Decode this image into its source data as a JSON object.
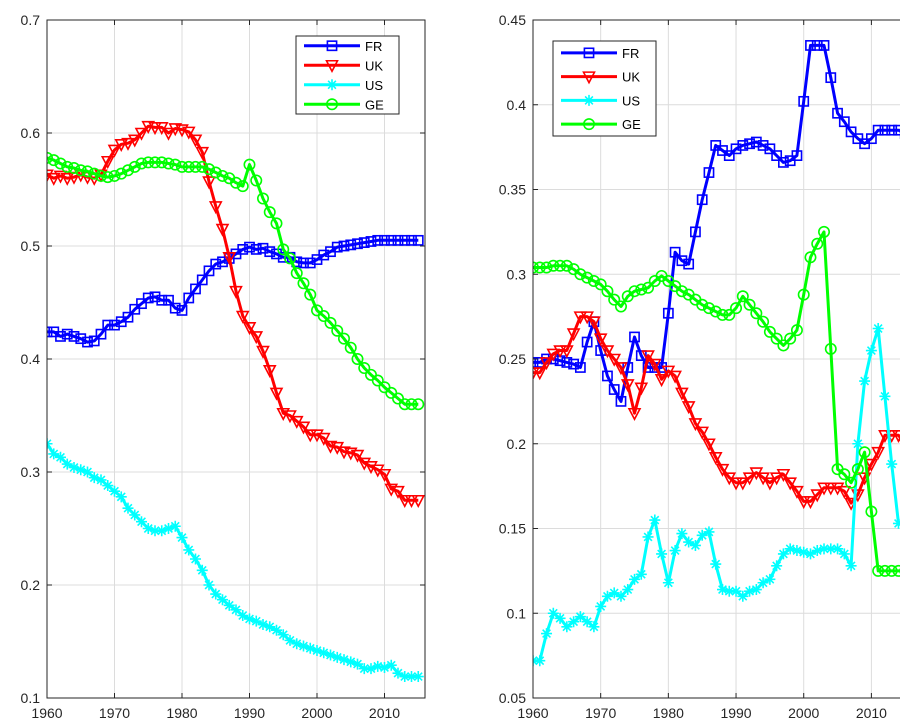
{
  "chart_data": [
    {
      "type": "line",
      "xlim": [
        1960,
        2016
      ],
      "ylim": [
        0.1,
        0.7
      ],
      "x_ticks": [
        1960,
        1970,
        1980,
        1990,
        2000,
        2010
      ],
      "y_ticks": [
        0.1,
        0.2,
        0.3,
        0.4,
        0.5,
        0.6,
        0.7
      ],
      "x_tick_labels": [
        "1960",
        "1970",
        "1980",
        "1990",
        "2000",
        "2010"
      ],
      "y_tick_labels": [
        "0.1",
        "0.2",
        "0.3",
        "0.4",
        "0.5",
        "0.6",
        "0.7"
      ],
      "grid": true,
      "legend_placement": "top-right",
      "x": [
        1960,
        1961,
        1962,
        1963,
        1964,
        1965,
        1966,
        1967,
        1968,
        1969,
        1970,
        1971,
        1972,
        1973,
        1974,
        1975,
        1976,
        1977,
        1978,
        1979,
        1980,
        1981,
        1982,
        1983,
        1984,
        1985,
        1986,
        1987,
        1988,
        1989,
        1990,
        1991,
        1992,
        1993,
        1994,
        1995,
        1996,
        1997,
        1998,
        1999,
        2000,
        2001,
        2002,
        2003,
        2004,
        2005,
        2006,
        2007,
        2008,
        2009,
        2010,
        2011,
        2012,
        2013,
        2014,
        2015
      ],
      "series": [
        {
          "name": "FR",
          "color": "#0000ff",
          "marker": "square",
          "values": [
            0.424,
            0.424,
            0.42,
            0.422,
            0.42,
            0.418,
            0.415,
            0.416,
            0.422,
            0.43,
            0.43,
            0.433,
            0.437,
            0.444,
            0.449,
            0.454,
            0.455,
            0.452,
            0.452,
            0.445,
            0.443,
            0.454,
            0.462,
            0.47,
            0.478,
            0.484,
            0.486,
            0.489,
            0.493,
            0.497,
            0.499,
            0.497,
            0.498,
            0.495,
            0.493,
            0.49,
            0.49,
            0.486,
            0.485,
            0.485,
            0.488,
            0.492,
            0.495,
            0.499,
            0.5,
            0.501,
            0.502,
            0.503,
            0.504,
            0.505,
            0.505,
            0.505,
            0.505,
            0.505,
            0.505,
            0.505
          ]
        },
        {
          "name": "UK",
          "color": "#ff0000",
          "marker": "triangle-down",
          "values": [
            0.563,
            0.56,
            0.562,
            0.56,
            0.561,
            0.563,
            0.561,
            0.56,
            0.563,
            0.575,
            0.585,
            0.59,
            0.591,
            0.594,
            0.6,
            0.606,
            0.605,
            0.605,
            0.6,
            0.604,
            0.603,
            0.601,
            0.594,
            0.583,
            0.557,
            0.535,
            0.515,
            0.49,
            0.46,
            0.438,
            0.428,
            0.42,
            0.407,
            0.39,
            0.37,
            0.352,
            0.35,
            0.345,
            0.34,
            0.333,
            0.333,
            0.33,
            0.323,
            0.322,
            0.318,
            0.317,
            0.315,
            0.308,
            0.305,
            0.302,
            0.298,
            0.285,
            0.283,
            0.275,
            0.275,
            0.275
          ]
        },
        {
          "name": "US",
          "color": "#00ffff",
          "marker": "star",
          "values": [
            0.325,
            0.316,
            0.313,
            0.307,
            0.304,
            0.302,
            0.3,
            0.295,
            0.293,
            0.288,
            0.283,
            0.278,
            0.268,
            0.262,
            0.256,
            0.25,
            0.248,
            0.248,
            0.25,
            0.252,
            0.242,
            0.231,
            0.223,
            0.213,
            0.2,
            0.192,
            0.187,
            0.182,
            0.178,
            0.173,
            0.17,
            0.168,
            0.165,
            0.163,
            0.16,
            0.156,
            0.151,
            0.148,
            0.146,
            0.144,
            0.142,
            0.14,
            0.138,
            0.136,
            0.134,
            0.132,
            0.13,
            0.126,
            0.126,
            0.128,
            0.127,
            0.129,
            0.122,
            0.119,
            0.119,
            0.119
          ]
        },
        {
          "name": "GE",
          "color": "#00ff00",
          "marker": "circle",
          "values": [
            0.578,
            0.576,
            0.573,
            0.57,
            0.569,
            0.567,
            0.566,
            0.564,
            0.562,
            0.561,
            0.562,
            0.564,
            0.567,
            0.57,
            0.573,
            0.574,
            0.574,
            0.574,
            0.573,
            0.572,
            0.57,
            0.57,
            0.57,
            0.57,
            0.568,
            0.565,
            0.562,
            0.56,
            0.556,
            0.553,
            0.572,
            0.558,
            0.542,
            0.53,
            0.52,
            0.497,
            0.489,
            0.476,
            0.467,
            0.457,
            0.443,
            0.438,
            0.432,
            0.425,
            0.418,
            0.41,
            0.4,
            0.392,
            0.386,
            0.381,
            0.375,
            0.37,
            0.365,
            0.36,
            0.36,
            0.36
          ]
        }
      ]
    },
    {
      "type": "line",
      "xlim": [
        1960,
        2016
      ],
      "ylim": [
        0.05,
        0.45
      ],
      "x_ticks": [
        1960,
        1970,
        1980,
        1990,
        2000,
        2010
      ],
      "y_ticks": [
        0.05,
        0.1,
        0.15,
        0.2,
        0.25,
        0.3,
        0.35,
        0.4,
        0.45
      ],
      "x_tick_labels": [
        "1960",
        "1970",
        "1980",
        "1990",
        "2000",
        "2010"
      ],
      "y_tick_labels": [
        "0.05",
        "0.1",
        "0.15",
        "0.2",
        "0.25",
        "0.3",
        "0.35",
        "0.4",
        "0.45"
      ],
      "grid": true,
      "legend_placement": "top-left",
      "x": [
        1960,
        1961,
        1962,
        1963,
        1964,
        1965,
        1966,
        1967,
        1968,
        1969,
        1970,
        1971,
        1972,
        1973,
        1974,
        1975,
        1976,
        1977,
        1978,
        1979,
        1980,
        1981,
        1982,
        1983,
        1984,
        1985,
        1986,
        1987,
        1988,
        1989,
        1990,
        1991,
        1992,
        1993,
        1994,
        1995,
        1996,
        1997,
        1998,
        1999,
        2000,
        2001,
        2002,
        2003,
        2004,
        2005,
        2006,
        2007,
        2008,
        2009,
        2010,
        2011,
        2012,
        2013,
        2014,
        2015
      ],
      "series": [
        {
          "name": "FR",
          "color": "#0000ff",
          "marker": "square",
          "values": [
            0.248,
            0.248,
            0.25,
            0.25,
            0.249,
            0.248,
            0.247,
            0.245,
            0.26,
            0.272,
            0.255,
            0.24,
            0.232,
            0.225,
            0.245,
            0.263,
            0.252,
            0.245,
            0.245,
            0.245,
            0.277,
            0.313,
            0.308,
            0.306,
            0.325,
            0.344,
            0.36,
            0.376,
            0.373,
            0.37,
            0.374,
            0.376,
            0.377,
            0.378,
            0.376,
            0.374,
            0.37,
            0.366,
            0.367,
            0.37,
            0.402,
            0.435,
            0.435,
            0.435,
            0.416,
            0.395,
            0.39,
            0.384,
            0.38,
            0.377,
            0.38,
            0.385,
            0.385,
            0.385,
            0.385,
            0.383
          ]
        },
        {
          "name": "UK",
          "color": "#ff0000",
          "marker": "triangle-down",
          "values": [
            0.242,
            0.242,
            0.248,
            0.253,
            0.255,
            0.255,
            0.265,
            0.275,
            0.275,
            0.272,
            0.262,
            0.255,
            0.25,
            0.245,
            0.235,
            0.218,
            0.233,
            0.252,
            0.247,
            0.238,
            0.243,
            0.24,
            0.23,
            0.222,
            0.212,
            0.207,
            0.2,
            0.192,
            0.185,
            0.18,
            0.177,
            0.177,
            0.18,
            0.183,
            0.18,
            0.177,
            0.18,
            0.182,
            0.177,
            0.172,
            0.166,
            0.166,
            0.17,
            0.174,
            0.174,
            0.174,
            0.172,
            0.165,
            0.17,
            0.18,
            0.188,
            0.195,
            0.205,
            0.205,
            0.205,
            0.2
          ]
        },
        {
          "name": "US",
          "color": "#00ffff",
          "marker": "star",
          "values": [
            0.072,
            0.072,
            0.088,
            0.1,
            0.097,
            0.092,
            0.095,
            0.098,
            0.095,
            0.092,
            0.104,
            0.11,
            0.112,
            0.11,
            0.114,
            0.12,
            0.123,
            0.145,
            0.155,
            0.135,
            0.118,
            0.137,
            0.147,
            0.142,
            0.14,
            0.146,
            0.148,
            0.129,
            0.114,
            0.113,
            0.113,
            0.11,
            0.113,
            0.114,
            0.118,
            0.12,
            0.128,
            0.135,
            0.138,
            0.137,
            0.136,
            0.135,
            0.137,
            0.138,
            0.138,
            0.138,
            0.135,
            0.128,
            0.2,
            0.237,
            0.255,
            0.268,
            0.228,
            0.188,
            0.153,
            0.155
          ]
        },
        {
          "name": "GE",
          "color": "#00ff00",
          "marker": "circle",
          "values": [
            0.304,
            0.304,
            0.304,
            0.305,
            0.305,
            0.305,
            0.303,
            0.3,
            0.298,
            0.296,
            0.294,
            0.29,
            0.285,
            0.281,
            0.287,
            0.29,
            0.291,
            0.292,
            0.296,
            0.299,
            0.296,
            0.293,
            0.29,
            0.288,
            0.285,
            0.282,
            0.28,
            0.278,
            0.276,
            0.276,
            0.28,
            0.287,
            0.282,
            0.277,
            0.272,
            0.266,
            0.262,
            0.258,
            0.262,
            0.267,
            0.288,
            0.31,
            0.318,
            0.325,
            0.256,
            0.185,
            0.182,
            0.177,
            0.185,
            0.195,
            0.16,
            0.125,
            0.125,
            0.125,
            0.125,
            0.125
          ]
        }
      ]
    }
  ]
}
